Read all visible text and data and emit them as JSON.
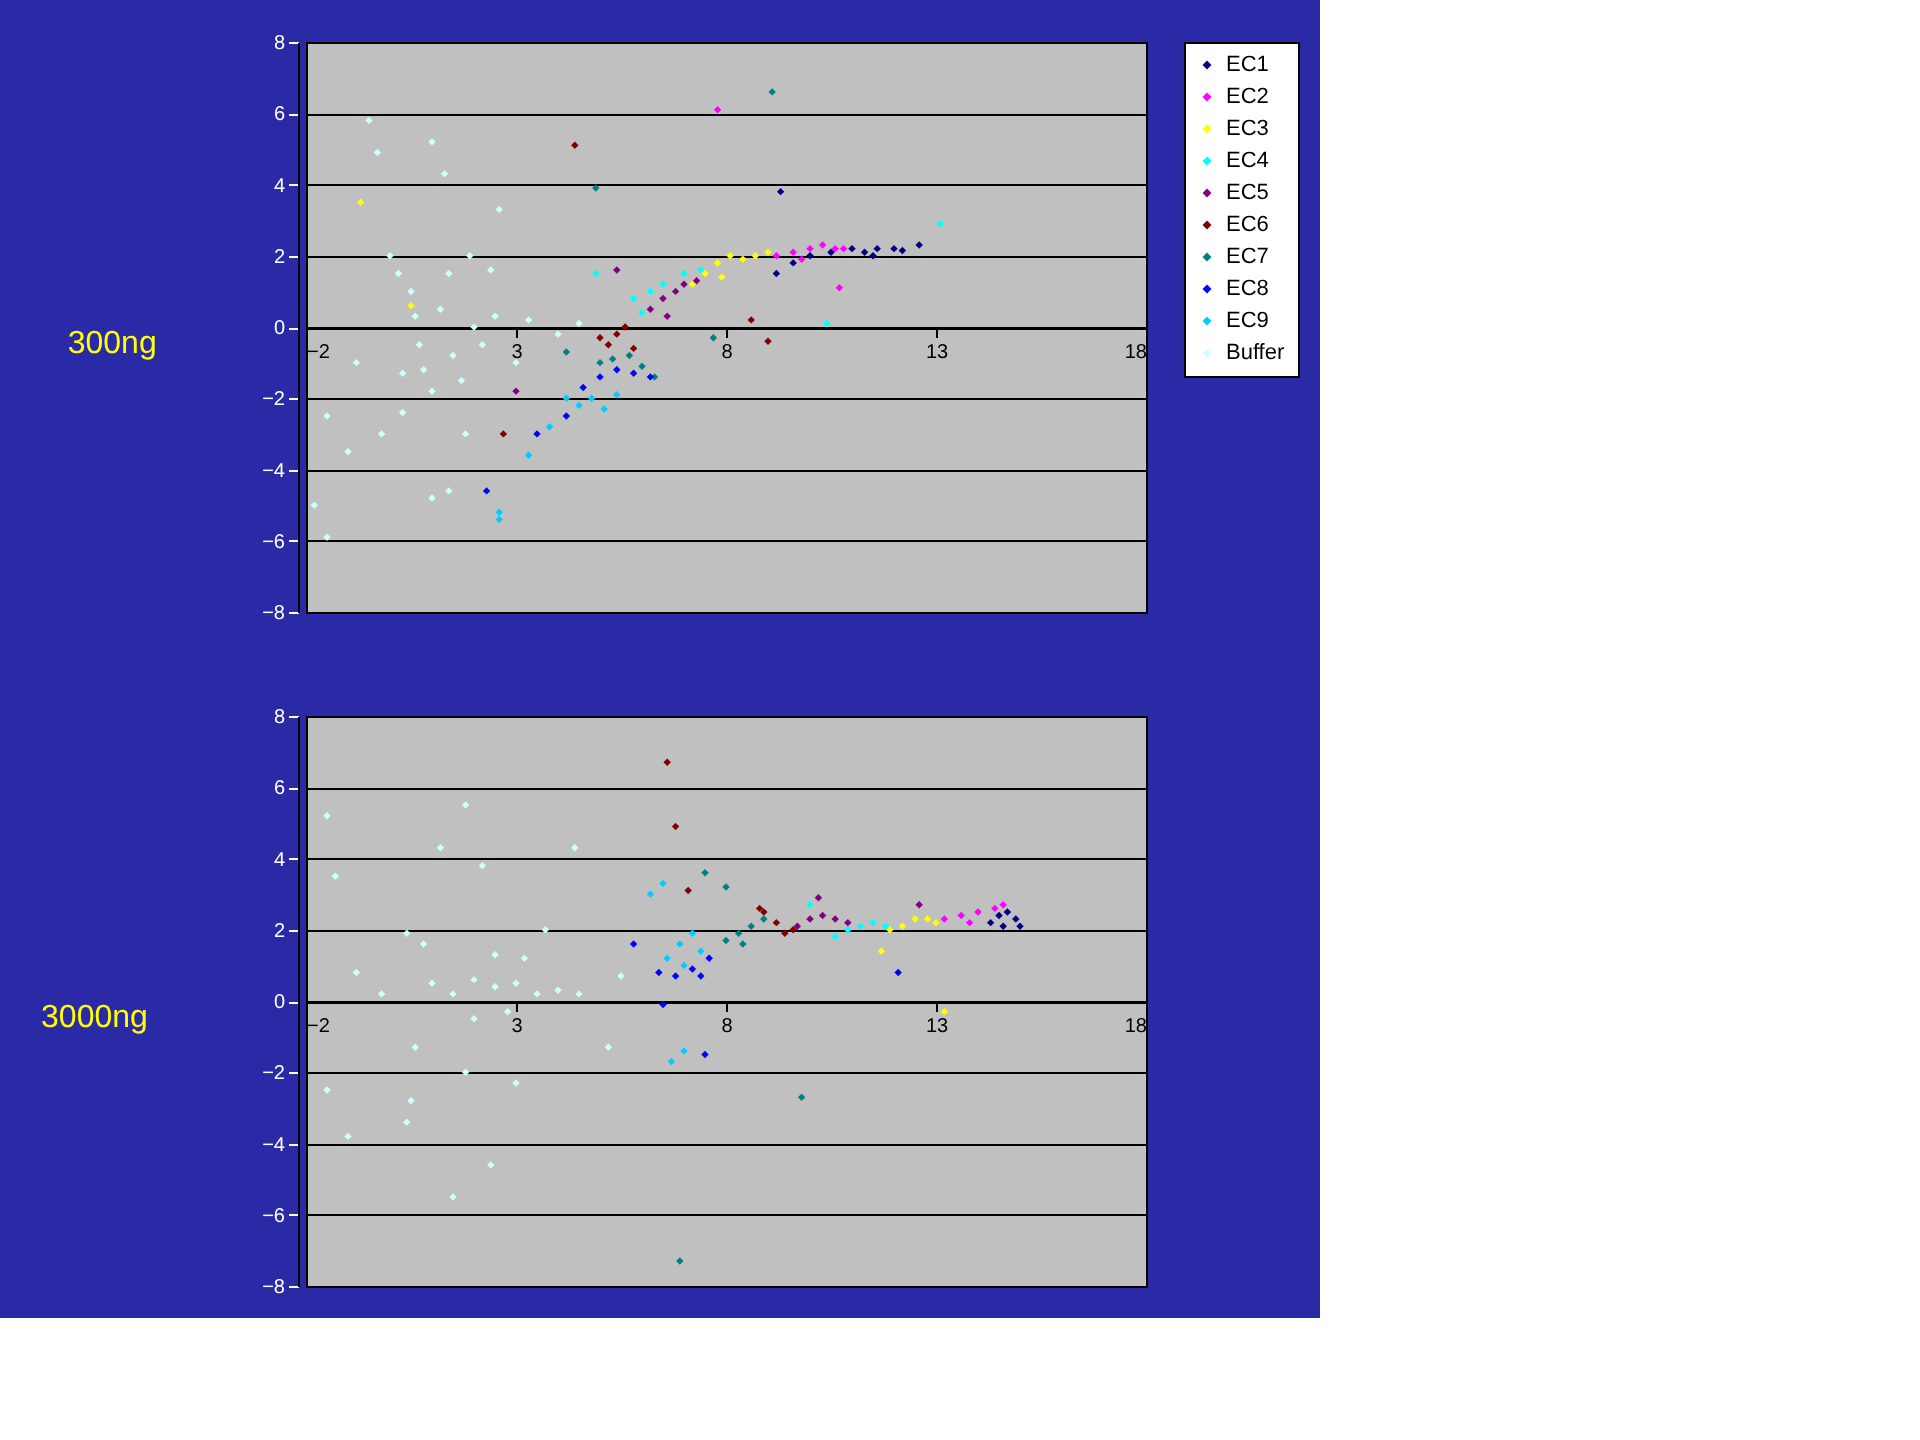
{
  "chart_data": [
    {
      "type": "scatter",
      "title": "300ng",
      "xlim": [
        -2,
        18
      ],
      "ylim": [
        -8,
        8
      ],
      "xticks": [
        -2,
        3,
        8,
        13,
        18
      ],
      "yticks": [
        -8,
        -6,
        -4,
        -2,
        0,
        2,
        4,
        6,
        8
      ],
      "grid": "y",
      "legend": "right",
      "marker": "diamond",
      "series": [
        {
          "name": "EC1",
          "color": "#000080",
          "x": [
            9.2,
            9.6,
            10,
            10.5,
            11,
            11.3,
            11.6,
            12,
            12.2,
            12.6,
            9.3,
            11.5
          ],
          "values": [
            1.5,
            1.8,
            2.0,
            2.1,
            2.2,
            2.1,
            2.2,
            2.2,
            2.15,
            2.3,
            3.8,
            2.0
          ]
        },
        {
          "name": "EC2",
          "color": "#ff00ff",
          "x": [
            9.2,
            9.6,
            10,
            10.3,
            10.6,
            10.8,
            9.8,
            7.8,
            10.7
          ],
          "values": [
            2.0,
            2.1,
            2.2,
            2.3,
            2.2,
            2.2,
            1.9,
            6.1,
            1.1
          ]
        },
        {
          "name": "EC3",
          "color": "#ffff00",
          "x": [
            7.2,
            7.5,
            7.8,
            8.1,
            8.4,
            8.7,
            9,
            7.9,
            -0.7,
            0.5
          ],
          "values": [
            1.2,
            1.5,
            1.8,
            2.0,
            1.9,
            2.0,
            2.1,
            1.4,
            3.5,
            0.6
          ]
        },
        {
          "name": "EC4",
          "color": "#00ffff",
          "x": [
            5.8,
            6.2,
            6.5,
            7,
            7.4,
            6,
            4.9,
            13.1,
            10.4
          ],
          "values": [
            0.8,
            1.0,
            1.2,
            1.5,
            1.6,
            0.4,
            1.5,
            2.9,
            0.1
          ]
        },
        {
          "name": "EC5",
          "color": "#800080",
          "x": [
            6.2,
            6.5,
            6.8,
            7,
            7.3,
            6.6,
            5.4,
            3
          ],
          "values": [
            0.5,
            0.8,
            1.0,
            1.2,
            1.3,
            0.3,
            1.6,
            -1.8
          ]
        },
        {
          "name": "EC6",
          "color": "#800000",
          "x": [
            5,
            5.2,
            5.4,
            5.6,
            5.8,
            4.4,
            9,
            8.6,
            2.7
          ],
          "values": [
            -0.3,
            -0.5,
            -0.2,
            0.0,
            -0.6,
            5.1,
            -0.4,
            0.2,
            -3.0
          ]
        },
        {
          "name": "EC7",
          "color": "#008080",
          "x": [
            5,
            5.3,
            5.7,
            6,
            6.3,
            4.9,
            9.1,
            7.7,
            4.2
          ],
          "values": [
            -1.0,
            -0.9,
            -0.8,
            -1.1,
            -1.4,
            3.9,
            6.6,
            -0.3,
            -0.7
          ]
        },
        {
          "name": "EC8",
          "color": "#0000ff",
          "x": [
            4.6,
            5,
            5.4,
            5.8,
            6.2,
            4.2,
            3.5,
            2.3
          ],
          "values": [
            -1.7,
            -1.4,
            -1.2,
            -1.3,
            -1.4,
            -2.5,
            -3.0,
            -4.6
          ]
        },
        {
          "name": "EC9",
          "color": "#00ccff",
          "x": [
            4.2,
            4.5,
            4.8,
            5.1,
            5.4,
            3.8,
            3.3,
            2.6,
            2.6
          ],
          "values": [
            -2.0,
            -2.2,
            -2.0,
            -2.3,
            -1.9,
            -2.8,
            -3.6,
            -5.2,
            -5.4
          ]
        },
        {
          "name": "Buffer",
          "color": "#ccffff",
          "x": [
            -1.5,
            -1.8,
            -1.5,
            -1,
            -0.8,
            -0.5,
            -0.3,
            0,
            0.2,
            0.5,
            0.7,
            0.8,
            1,
            1.2,
            1.4,
            1.5,
            1.7,
            2,
            2.2,
            2.5,
            3,
            1,
            1.3,
            2.6,
            2.4,
            1.8,
            1,
            1.4,
            0.3,
            -0.2,
            0.6,
            1.9,
            0.3,
            3.3,
            4,
            4.5
          ],
          "values": [
            -2.5,
            -5,
            -5.9,
            -3.5,
            -1,
            5.8,
            4.9,
            2,
            1.5,
            1,
            -0.5,
            -1.2,
            -1.8,
            0.5,
            1.5,
            -0.8,
            -1.5,
            0,
            -0.5,
            0.3,
            -1,
            5.2,
            4.3,
            3.3,
            1.6,
            -3,
            -4.8,
            -4.6,
            -2.4,
            -3.0,
            0.3,
            2.0,
            -1.3,
            0.2,
            -0.2,
            0.1
          ]
        }
      ]
    },
    {
      "type": "scatter",
      "title": "3000ng",
      "xlim": [
        -2,
        18
      ],
      "ylim": [
        -8,
        8
      ],
      "xticks": [
        -2,
        3,
        8,
        13,
        18
      ],
      "yticks": [
        -8,
        -6,
        -4,
        -2,
        0,
        2,
        4,
        6,
        8
      ],
      "grid": "y",
      "legend": "right",
      "marker": "diamond",
      "series": [
        {
          "name": "EC1",
          "color": "#000080",
          "x": [
            14.3,
            14.5,
            14.7,
            14.9,
            15,
            14.6
          ],
          "values": [
            2.2,
            2.4,
            2.5,
            2.3,
            2.1,
            2.1
          ]
        },
        {
          "name": "EC2",
          "color": "#ff00ff",
          "x": [
            13.2,
            13.6,
            14,
            14.4,
            14.6,
            13.8
          ],
          "values": [
            2.3,
            2.4,
            2.5,
            2.6,
            2.7,
            2.2
          ]
        },
        {
          "name": "EC3",
          "color": "#ffff00",
          "x": [
            11.9,
            12.2,
            12.5,
            12.8,
            13,
            11.7,
            13.2
          ],
          "values": [
            2.0,
            2.1,
            2.3,
            2.3,
            2.2,
            1.4,
            -0.3
          ]
        },
        {
          "name": "EC4",
          "color": "#00ffff",
          "x": [
            10.6,
            10.9,
            11.2,
            11.5,
            11.8,
            10
          ],
          "values": [
            1.8,
            2.0,
            2.1,
            2.2,
            2.1,
            2.7
          ]
        },
        {
          "name": "EC5",
          "color": "#800080",
          "x": [
            9.7,
            10,
            10.3,
            10.6,
            10.9,
            10.2,
            12.6
          ],
          "values": [
            2.1,
            2.3,
            2.4,
            2.3,
            2.2,
            2.9,
            2.7
          ]
        },
        {
          "name": "EC6",
          "color": "#800000",
          "x": [
            8.9,
            9.2,
            9.4,
            9.6,
            8.8,
            6.6,
            6.8,
            7.1
          ],
          "values": [
            2.5,
            2.2,
            1.9,
            2.0,
            2.6,
            6.7,
            4.9,
            3.1
          ]
        },
        {
          "name": "EC7",
          "color": "#008080",
          "x": [
            8,
            8.3,
            8.6,
            8.9,
            8.4,
            7.5,
            8.0,
            9.8,
            6.9
          ],
          "values": [
            1.7,
            1.9,
            2.1,
            2.3,
            1.6,
            3.6,
            3.2,
            -2.7,
            -7.3
          ]
        },
        {
          "name": "EC8",
          "color": "#0000ff",
          "x": [
            6.4,
            6.8,
            7.2,
            7.6,
            7.4,
            5.8,
            6.5,
            7.5,
            12.1
          ],
          "values": [
            0.8,
            0.7,
            0.9,
            1.2,
            0.7,
            1.6,
            -0.1,
            -1.5,
            0.8
          ]
        },
        {
          "name": "EC9",
          "color": "#00ccff",
          "x": [
            6.6,
            6.9,
            7.2,
            7.4,
            7.0,
            6.2,
            6.5,
            7.0,
            6.7
          ],
          "values": [
            1.2,
            1.6,
            1.9,
            1.4,
            1.0,
            3.0,
            3.3,
            -1.4,
            -1.7
          ]
        },
        {
          "name": "Buffer",
          "color": "#ccffff",
          "x": [
            -1.5,
            -1.3,
            -1.5,
            -0.8,
            -0.2,
            0.4,
            0.8,
            0.6,
            1.2,
            1.8,
            2.2,
            1.5,
            2.4,
            1.8,
            0.5,
            1,
            1.5,
            2,
            2.5,
            3,
            3.5,
            4,
            4.5,
            5.5,
            2,
            2.8,
            3.2,
            2.5,
            3,
            4.4,
            3.7,
            5.2,
            -1.0,
            0.4
          ],
          "values": [
            5.2,
            3.5,
            -2.5,
            0.8,
            0.2,
            1.9,
            1.6,
            -1.3,
            4.3,
            5.5,
            3.8,
            -5.5,
            -4.6,
            -2.0,
            -2.8,
            0.5,
            0.2,
            0.6,
            0.4,
            0.5,
            0.2,
            0.3,
            0.2,
            0.7,
            -0.5,
            -0.3,
            1.2,
            1.3,
            -2.3,
            4.3,
            2.0,
            -1.3,
            -3.8,
            -3.4
          ]
        }
      ]
    }
  ]
}
